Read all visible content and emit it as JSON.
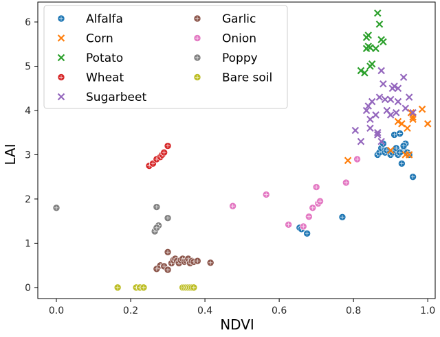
{
  "chart_data": {
    "type": "scatter",
    "xlabel": "NDVI",
    "ylabel": "LAI",
    "xlim": [
      -0.05,
      1.02
    ],
    "ylim": [
      -0.25,
      6.45
    ],
    "xticks": [
      0.0,
      0.2,
      0.4,
      0.6,
      0.8,
      1.0
    ],
    "xtick_labels": [
      "0.0",
      "0.2",
      "0.4",
      "0.6",
      "0.8",
      "1.0"
    ],
    "yticks": [
      0,
      1,
      2,
      3,
      4,
      5,
      6
    ],
    "ytick_labels": [
      "0",
      "1",
      "2",
      "3",
      "4",
      "5",
      "6"
    ],
    "legend_position": "top-left",
    "series": [
      {
        "name": "Alfalfa",
        "marker": "circle",
        "color": "#1f77b4",
        "x": [
          0.655,
          0.66,
          0.675,
          0.77,
          0.865,
          0.87,
          0.875,
          0.88,
          0.885,
          0.89,
          0.9,
          0.905,
          0.91,
          0.915,
          0.92,
          0.925,
          0.93,
          0.935,
          0.94,
          0.945,
          0.95,
          0.96,
          0.915,
          0.925,
          0.935
        ],
        "y": [
          1.35,
          1.32,
          1.22,
          1.59,
          3.0,
          3.05,
          3.15,
          3.25,
          3.05,
          3.1,
          3.0,
          3.05,
          3.45,
          3.1,
          3.0,
          3.48,
          2.8,
          3.1,
          3.25,
          3.05,
          3.0,
          2.5,
          3.15,
          3.05,
          3.2
        ]
      },
      {
        "name": "Corn",
        "marker": "x",
        "color": "#ff7f0e",
        "x": [
          0.785,
          0.9,
          0.92,
          0.93,
          0.94,
          0.945,
          0.95,
          0.955,
          0.96,
          0.96,
          0.985,
          1.0
        ],
        "y": [
          2.87,
          3.1,
          3.75,
          3.7,
          3.0,
          3.6,
          3.0,
          3.95,
          3.85,
          3.8,
          4.03,
          3.7
        ]
      },
      {
        "name": "Potato",
        "marker": "x",
        "color": "#2ca02c",
        "x": [
          0.835,
          0.84,
          0.84,
          0.835,
          0.845,
          0.85,
          0.86,
          0.865,
          0.87,
          0.875,
          0.88,
          0.82,
          0.83,
          0.845
        ],
        "y": [
          5.65,
          5.7,
          5.45,
          5.4,
          5.0,
          5.05,
          5.4,
          6.2,
          5.95,
          5.6,
          5.55,
          4.9,
          4.85,
          5.42
        ]
      },
      {
        "name": "Wheat",
        "marker": "circle",
        "color": "#d62728",
        "x": [
          0.25,
          0.26,
          0.27,
          0.28,
          0.285,
          0.29,
          0.3
        ],
        "y": [
          2.75,
          2.8,
          2.9,
          2.95,
          3.0,
          3.05,
          3.2
        ]
      },
      {
        "name": "Sugarbeet",
        "marker": "x",
        "color": "#9467bd",
        "x": [
          0.805,
          0.82,
          0.835,
          0.84,
          0.845,
          0.85,
          0.86,
          0.865,
          0.87,
          0.875,
          0.88,
          0.89,
          0.9,
          0.905,
          0.91,
          0.915,
          0.92,
          0.935,
          0.94,
          0.95,
          0.96,
          0.845,
          0.865,
          0.875,
          0.885,
          0.9,
          0.92
        ],
        "y": [
          3.55,
          3.3,
          4.0,
          4.1,
          3.8,
          4.2,
          3.9,
          3.5,
          4.3,
          4.9,
          4.6,
          4.0,
          4.25,
          4.5,
          4.55,
          3.95,
          4.2,
          4.75,
          4.05,
          4.3,
          3.95,
          3.6,
          3.45,
          3.3,
          4.25,
          3.9,
          4.5
        ]
      },
      {
        "name": "Garlic",
        "marker": "circle",
        "color": "#8c564b",
        "x": [
          0.27,
          0.28,
          0.29,
          0.3,
          0.31,
          0.315,
          0.32,
          0.325,
          0.33,
          0.335,
          0.34,
          0.345,
          0.35,
          0.355,
          0.36,
          0.365,
          0.37,
          0.38,
          0.415,
          0.3
        ],
        "y": [
          0.42,
          0.5,
          0.48,
          0.4,
          0.55,
          0.62,
          0.65,
          0.6,
          0.55,
          0.62,
          0.65,
          0.58,
          0.6,
          0.65,
          0.55,
          0.6,
          0.58,
          0.6,
          0.56,
          0.8
        ]
      },
      {
        "name": "Onion",
        "marker": "circle",
        "color": "#e377c2",
        "x": [
          0.475,
          0.565,
          0.625,
          0.665,
          0.68,
          0.69,
          0.7,
          0.705,
          0.71,
          0.78,
          0.81
        ],
        "y": [
          1.84,
          2.1,
          1.42,
          1.38,
          1.6,
          1.8,
          2.27,
          1.9,
          1.95,
          2.37,
          2.9
        ]
      },
      {
        "name": "Poppy",
        "marker": "circle",
        "color": "#7f7f7f",
        "x": [
          0.0,
          0.265,
          0.27,
          0.275,
          0.27,
          0.3
        ],
        "y": [
          1.8,
          1.27,
          1.82,
          1.4,
          1.35,
          1.57
        ]
      },
      {
        "name": "Bare soil",
        "marker": "circle",
        "color": "#bcbd22",
        "x": [
          0.165,
          0.215,
          0.225,
          0.235,
          0.34,
          0.345,
          0.35,
          0.355,
          0.36,
          0.365,
          0.37
        ],
        "y": [
          0.0,
          0.0,
          0.0,
          0.0,
          0.0,
          0.0,
          0.0,
          0.0,
          0.0,
          0.0,
          0.0
        ]
      }
    ]
  }
}
